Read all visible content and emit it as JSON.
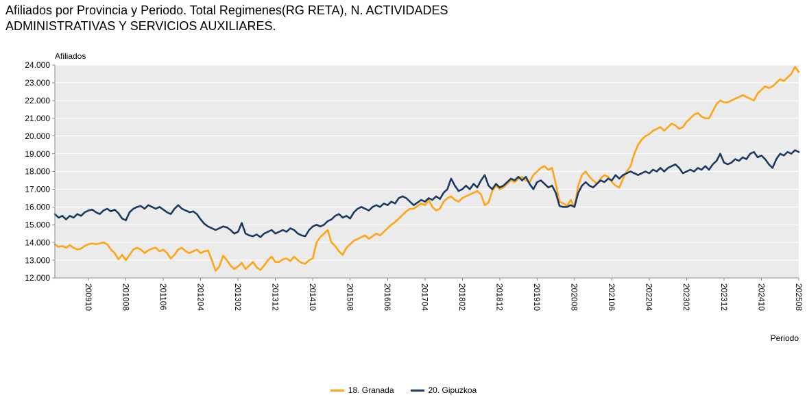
{
  "title": {
    "line1": "Afiliados por Provincia y Periodo. Total Regimenes(RG RETA), N. ACTIVIDADES",
    "line2": "ADMINISTRATIVAS Y SERVICIOS AUXILIARES."
  },
  "chart_data": {
    "type": "line",
    "title": "Afiliados por Provincia y Periodo. Total Regimenes(RG RETA), N. ACTIVIDADES ADMINISTRATIVAS Y SERVICIOS AUXILIARES.",
    "ylabel": "Afiliados",
    "xlabel": "Periodo",
    "ylim": [
      12000,
      24000
    ],
    "y_tick_step": 1000,
    "y_tick_labels": [
      "12.000",
      "13.000",
      "14.000",
      "15.000",
      "16.000",
      "17.000",
      "18.000",
      "19.000",
      "20.000",
      "21.000",
      "22.000",
      "23.000",
      "24.000"
    ],
    "grid": true,
    "legend_position": "bottom",
    "plot_bg": "#ebebeb",
    "grid_color": "#ffffff",
    "axis_color": "#8b8b8b",
    "x_tick_labels": [
      "200910",
      "201008",
      "201106",
      "201204",
      "201302",
      "201312",
      "201410",
      "201508",
      "201606",
      "201704",
      "201802",
      "201812",
      "201910",
      "202008",
      "202106",
      "202204",
      "202302",
      "202312",
      "202410",
      "202508"
    ],
    "x": [
      "200901",
      "200902",
      "200903",
      "200904",
      "200905",
      "200906",
      "200907",
      "200908",
      "200909",
      "200910",
      "200911",
      "200912",
      "201001",
      "201002",
      "201003",
      "201004",
      "201005",
      "201006",
      "201007",
      "201008",
      "201009",
      "201010",
      "201011",
      "201012",
      "201101",
      "201102",
      "201103",
      "201104",
      "201105",
      "201106",
      "201107",
      "201108",
      "201109",
      "201110",
      "201111",
      "201112",
      "201201",
      "201202",
      "201203",
      "201204",
      "201205",
      "201206",
      "201207",
      "201208",
      "201209",
      "201210",
      "201211",
      "201212",
      "201301",
      "201302",
      "201303",
      "201304",
      "201305",
      "201306",
      "201307",
      "201308",
      "201309",
      "201310",
      "201311",
      "201312",
      "201401",
      "201402",
      "201403",
      "201404",
      "201405",
      "201406",
      "201407",
      "201408",
      "201409",
      "201410",
      "201411",
      "201412",
      "201501",
      "201502",
      "201503",
      "201504",
      "201505",
      "201506",
      "201507",
      "201508",
      "201509",
      "201510",
      "201511",
      "201512",
      "201601",
      "201602",
      "201603",
      "201604",
      "201605",
      "201606",
      "201607",
      "201608",
      "201609",
      "201610",
      "201611",
      "201612",
      "201701",
      "201702",
      "201703",
      "201704",
      "201705",
      "201706",
      "201707",
      "201708",
      "201709",
      "201710",
      "201711",
      "201712",
      "201801",
      "201802",
      "201803",
      "201804",
      "201805",
      "201806",
      "201807",
      "201808",
      "201809",
      "201810",
      "201811",
      "201812",
      "201901",
      "201902",
      "201903",
      "201904",
      "201905",
      "201906",
      "201907",
      "201908",
      "201909",
      "201910",
      "201911",
      "201912",
      "202001",
      "202002",
      "202003",
      "202004",
      "202005",
      "202006",
      "202007",
      "202008",
      "202009",
      "202010",
      "202011",
      "202012",
      "202101",
      "202102",
      "202103",
      "202104",
      "202105",
      "202106",
      "202107",
      "202108",
      "202109",
      "202110",
      "202111",
      "202112",
      "202201",
      "202202",
      "202203",
      "202204",
      "202205",
      "202206",
      "202207",
      "202208",
      "202209",
      "202210",
      "202211",
      "202212",
      "202301",
      "202302",
      "202303",
      "202304",
      "202305",
      "202306",
      "202307",
      "202308",
      "202309",
      "202310",
      "202311",
      "202312",
      "202401",
      "202402",
      "202403",
      "202404",
      "202405",
      "202406",
      "202407",
      "202408",
      "202409",
      "202410",
      "202411",
      "202412",
      "202501",
      "202502",
      "202503",
      "202504",
      "202505",
      "202506",
      "202507",
      "202508"
    ],
    "series": [
      {
        "name": "18. Granada",
        "color": "#FFA412",
        "values": [
          13900,
          13750,
          13800,
          13700,
          13850,
          13700,
          13600,
          13650,
          13800,
          13900,
          13950,
          13900,
          13950,
          14000,
          13900,
          13600,
          13400,
          13050,
          13300,
          13000,
          13300,
          13600,
          13700,
          13600,
          13400,
          13550,
          13650,
          13700,
          13500,
          13600,
          13400,
          13100,
          13300,
          13600,
          13700,
          13500,
          13400,
          13500,
          13600,
          13400,
          13500,
          13550,
          13000,
          12400,
          12650,
          13250,
          13000,
          12700,
          12500,
          12650,
          12850,
          12500,
          12700,
          12900,
          12600,
          12450,
          12700,
          13000,
          13200,
          12900,
          12900,
          13050,
          13100,
          12950,
          13200,
          13000,
          12850,
          12800,
          13000,
          13100,
          14000,
          14300,
          14500,
          14700,
          14000,
          13800,
          13500,
          13300,
          13700,
          13900,
          14100,
          14200,
          14300,
          14400,
          14200,
          14350,
          14500,
          14400,
          14600,
          14800,
          15000,
          15150,
          15350,
          15550,
          15750,
          15900,
          15900,
          16050,
          16200,
          16100,
          16400,
          16000,
          15800,
          15900,
          16300,
          16500,
          16600,
          16400,
          16300,
          16500,
          16600,
          16700,
          16800,
          16900,
          16700,
          16100,
          16250,
          16900,
          17200,
          17000,
          17100,
          17300,
          17500,
          17400,
          17600,
          17700,
          17500,
          17400,
          17800,
          18000,
          18200,
          18300,
          18100,
          18200,
          17300,
          16300,
          16200,
          16050,
          16400,
          16000,
          17200,
          17800,
          18000,
          17700,
          17500,
          17300,
          17600,
          17800,
          17700,
          17400,
          17200,
          17100,
          17600,
          18000,
          18300,
          19000,
          19500,
          19800,
          20000,
          20100,
          20300,
          20400,
          20500,
          20300,
          20500,
          20700,
          20600,
          20400,
          20500,
          20800,
          21000,
          21200,
          21300,
          21100,
          21000,
          21000,
          21400,
          21800,
          22000,
          21900,
          21900,
          22000,
          22100,
          22200,
          22300,
          22200,
          22100,
          22000,
          22400,
          22600,
          22800,
          22700,
          22800,
          23000,
          23200,
          23100,
          23300,
          23500,
          23900,
          23600
        ]
      },
      {
        "name": "20. Gipuzkoa",
        "color": "#1B3A63",
        "values": [
          15600,
          15400,
          15500,
          15300,
          15500,
          15400,
          15600,
          15500,
          15700,
          15800,
          15850,
          15700,
          15600,
          15800,
          15900,
          15750,
          15850,
          15650,
          15350,
          15250,
          15700,
          15900,
          16000,
          16050,
          15900,
          16100,
          16000,
          15900,
          16000,
          15850,
          15700,
          15600,
          15900,
          16100,
          15900,
          15800,
          15700,
          15750,
          15600,
          15300,
          15050,
          14900,
          14800,
          14700,
          14800,
          14900,
          14850,
          14700,
          14500,
          14600,
          15100,
          14500,
          14400,
          14350,
          14450,
          14300,
          14500,
          14600,
          14700,
          14500,
          14600,
          14700,
          14600,
          14800,
          14700,
          14500,
          14400,
          14350,
          14700,
          14900,
          15000,
          14900,
          15000,
          15200,
          15300,
          15500,
          15600,
          15400,
          15500,
          15350,
          15700,
          15900,
          16000,
          15900,
          15800,
          16000,
          16100,
          16000,
          16200,
          16100,
          16300,
          16200,
          16500,
          16600,
          16500,
          16300,
          16100,
          16250,
          16400,
          16300,
          16500,
          16400,
          16600,
          16450,
          16800,
          17000,
          17600,
          17200,
          16900,
          17000,
          17200,
          17000,
          17300,
          17100,
          17500,
          17800,
          17200,
          17000,
          17300,
          17100,
          17200,
          17400,
          17600,
          17500,
          17700,
          17500,
          17700,
          17300,
          17000,
          17400,
          17500,
          17300,
          17100,
          17200,
          16800,
          16050,
          16000,
          16000,
          16100,
          16000,
          16800,
          17200,
          17400,
          17200,
          17100,
          17300,
          17500,
          17400,
          17600,
          17500,
          17800,
          17600,
          17800,
          17900,
          18000,
          17900,
          17800,
          17900,
          18000,
          17900,
          18100,
          18000,
          18200,
          18000,
          18200,
          18300,
          18400,
          18200,
          17900,
          18000,
          18100,
          18000,
          18200,
          18100,
          18300,
          18100,
          18400,
          18600,
          19000,
          18500,
          18400,
          18500,
          18700,
          18600,
          18800,
          18700,
          19000,
          19100,
          18800,
          18900,
          18700,
          18400,
          18200,
          18700,
          19000,
          18900,
          19100,
          19000,
          19200,
          19100
        ]
      }
    ]
  }
}
